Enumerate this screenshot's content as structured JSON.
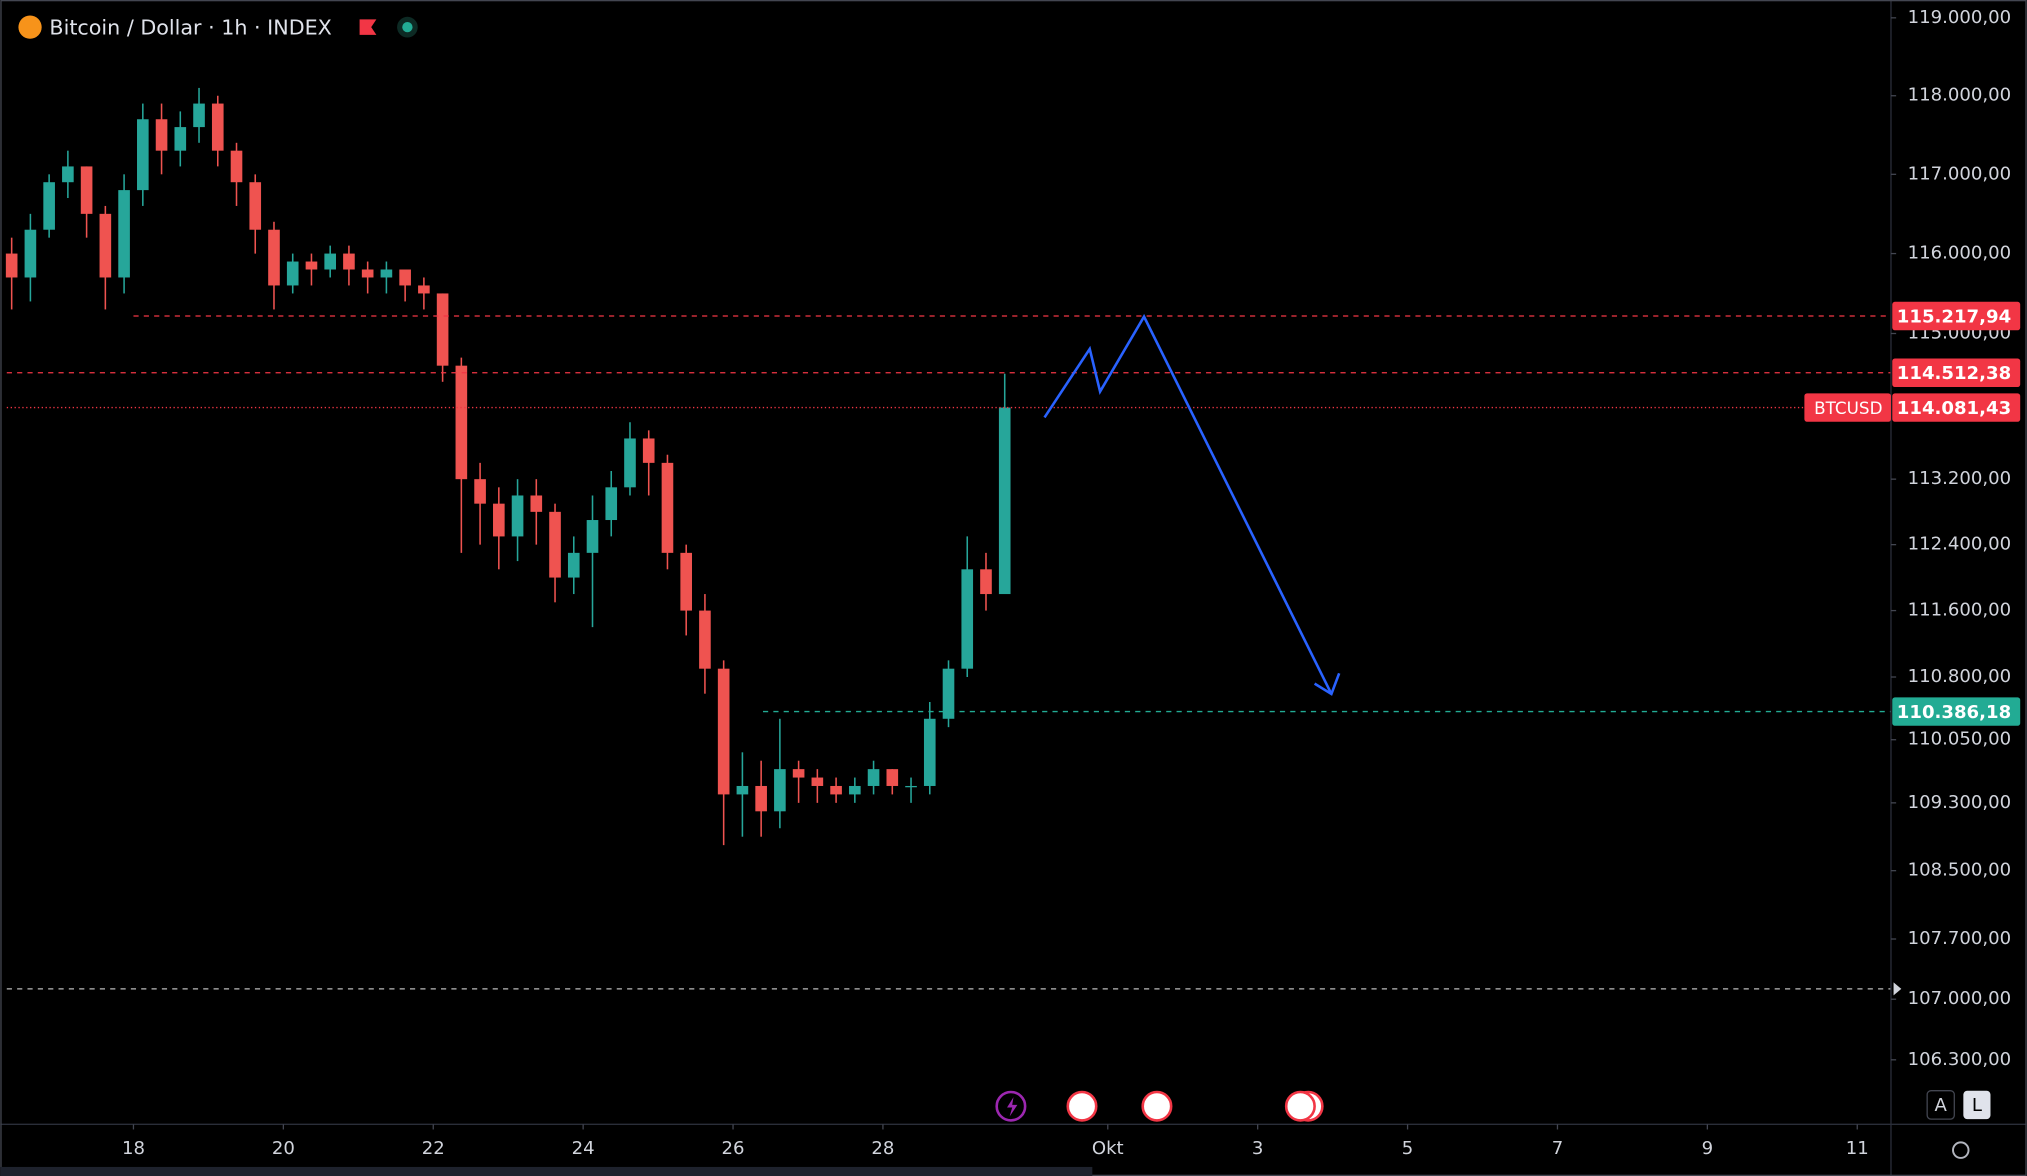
{
  "chart_data": {
    "type": "candlestick",
    "title": "Bitcoin / Dollar · 1h · INDEX",
    "log_scale": true,
    "up_color": "#26a69a",
    "down_color": "#ef5350",
    "xlim": [
      16.31,
      41.45
    ],
    "ylim": [
      105560,
      119230
    ],
    "xticks": [
      18,
      20,
      22,
      24,
      26,
      28,
      {
        "value": 31,
        "label": "Okt"
      },
      {
        "value": 33,
        "label": "3"
      },
      {
        "value": 35,
        "label": "5"
      },
      {
        "value": 37,
        "label": "7"
      },
      {
        "value": 39,
        "label": "9"
      },
      {
        "value": 41,
        "label": "11"
      }
    ],
    "yticks": [
      {
        "value": 119000,
        "label": "119.000,00"
      },
      {
        "value": 118000,
        "label": "118.000,00"
      },
      {
        "value": 117000,
        "label": "117.000,00"
      },
      {
        "value": 116000,
        "label": "116.000,00"
      },
      {
        "value": 115000,
        "label": "115.000,00"
      },
      {
        "value": 113200,
        "label": "113.200,00"
      },
      {
        "value": 112400,
        "label": "112.400,00"
      },
      {
        "value": 111600,
        "label": "111.600,00"
      },
      {
        "value": 110800,
        "label": "110.800,00"
      },
      {
        "value": 110050,
        "label": "110.050,00"
      },
      {
        "value": 109300,
        "label": "109.300,00"
      },
      {
        "value": 108500,
        "label": "108.500,00"
      },
      {
        "value": 107700,
        "label": "107.700,00"
      },
      {
        "value": 107000,
        "label": "107.000,00"
      },
      {
        "value": 106300,
        "label": "106.300,00"
      }
    ],
    "x": [
      16.375,
      16.625,
      16.875,
      17.125,
      17.375,
      17.625,
      17.875,
      18.125,
      18.375,
      18.625,
      18.875,
      19.125,
      19.375,
      19.625,
      19.875,
      20.125,
      20.375,
      20.625,
      20.875,
      21.125,
      21.375,
      21.625,
      21.875,
      22.125,
      22.375,
      22.625,
      22.875,
      23.125,
      23.375,
      23.625,
      23.875,
      24.125,
      24.375,
      24.625,
      24.875,
      25.125,
      25.375,
      25.625,
      25.875,
      26.125,
      26.375,
      26.625,
      26.875,
      27.125,
      27.375,
      27.625,
      27.875,
      28.125,
      28.375,
      28.625,
      28.875,
      29.125,
      29.375,
      29.625
    ],
    "open": [
      116000,
      115700,
      116300,
      116900,
      117100,
      116500,
      115700,
      116800,
      117700,
      117300,
      117600,
      117900,
      117300,
      116900,
      116300,
      115600,
      115900,
      115800,
      116000,
      115800,
      115700,
      115800,
      115600,
      115500,
      114600,
      113200,
      112900,
      112500,
      113000,
      112800,
      112000,
      112300,
      112700,
      113100,
      113700,
      113400,
      112300,
      111600,
      110900,
      109400,
      109500,
      109200,
      109700,
      109600,
      109500,
      109400,
      109500,
      109700,
      109500,
      109500,
      110300,
      110900,
      112100,
      111800
    ],
    "high": [
      116200,
      116500,
      117000,
      117300,
      117100,
      116600,
      117000,
      117900,
      117900,
      117800,
      118100,
      118000,
      117400,
      117000,
      116400,
      116000,
      116000,
      116100,
      116100,
      115900,
      115900,
      115800,
      115700,
      115500,
      114700,
      113400,
      113100,
      113200,
      113200,
      112900,
      112500,
      113000,
      113300,
      113900,
      113800,
      113500,
      112400,
      111800,
      111000,
      109900,
      109800,
      110300,
      109800,
      109700,
      109600,
      109600,
      109800,
      109700,
      109600,
      110500,
      111000,
      112500,
      112300,
      114500
    ],
    "low": [
      115300,
      115400,
      116200,
      116700,
      116200,
      115300,
      115500,
      116600,
      117000,
      117100,
      117400,
      117100,
      116600,
      116000,
      115300,
      115500,
      115600,
      115700,
      115600,
      115500,
      115500,
      115400,
      115300,
      114400,
      112300,
      112400,
      112100,
      112200,
      112400,
      111700,
      111800,
      111400,
      112500,
      113000,
      113000,
      112100,
      111300,
      110600,
      108800,
      108900,
      108900,
      109000,
      109300,
      109300,
      109300,
      109300,
      109400,
      109400,
      109300,
      109400,
      110200,
      110800,
      111600,
      111900
    ],
    "close": [
      115700,
      116300,
      116900,
      117100,
      116500,
      115700,
      116800,
      117700,
      117300,
      117600,
      117900,
      117300,
      116900,
      116300,
      115600,
      115900,
      115800,
      116000,
      115800,
      115700,
      115800,
      115600,
      115500,
      114600,
      113200,
      112900,
      112500,
      113000,
      112800,
      112000,
      112300,
      112700,
      113100,
      113700,
      113400,
      112300,
      111600,
      110900,
      109400,
      109500,
      109200,
      109700,
      109600,
      109500,
      109400,
      109500,
      109700,
      109500,
      109500,
      110300,
      110900,
      112100,
      111800,
      114081.43
    ],
    "price_lines": [
      {
        "value": 115217.94,
        "label": "115.217,94",
        "color": "#f23645",
        "start": 18.0
      },
      {
        "value": 114512.38,
        "label": "114.512,38",
        "color": "#f23645",
        "start": 16.31
      },
      {
        "value": 114081.43,
        "label": "114.081,43",
        "name": "BTCUSD",
        "color": "#f23645",
        "start": 16.31
      },
      {
        "value": 110386.18,
        "label": "110.386,18",
        "color": "#22ab94",
        "start": 26.4
      }
    ],
    "dashed_levels": [
      {
        "value": 107120,
        "color": "#bbbbbb"
      }
    ]
  },
  "ui": {
    "buttons": [
      "A",
      "L"
    ]
  }
}
